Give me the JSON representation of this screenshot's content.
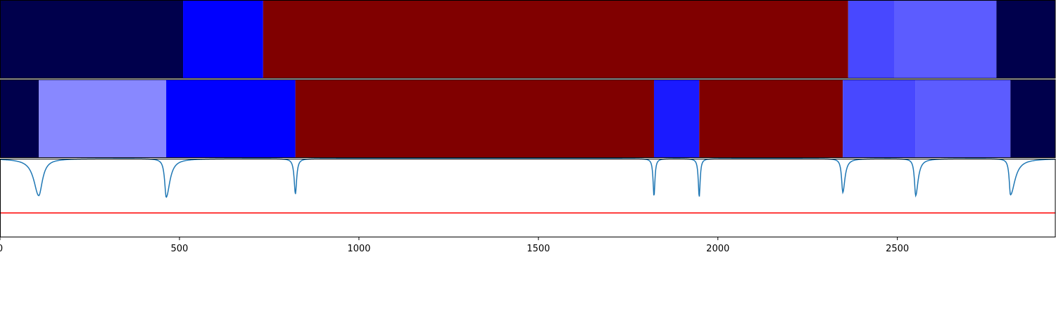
{
  "chart_data": [
    {
      "type": "heatmap",
      "name": "segment-track-1",
      "xlim": [
        0,
        2940
      ],
      "segments": [
        {
          "start": 0,
          "end": 510,
          "color": "#00004c"
        },
        {
          "start": 510,
          "end": 733,
          "color": "#0000ff"
        },
        {
          "start": 733,
          "end": 2363,
          "color": "#800000"
        },
        {
          "start": 2363,
          "end": 2492,
          "color": "#4848ff"
        },
        {
          "start": 2492,
          "end": 2776,
          "color": "#5c5cff"
        },
        {
          "start": 2776,
          "end": 2940,
          "color": "#00004c"
        }
      ]
    },
    {
      "type": "heatmap",
      "name": "segment-track-2",
      "xlim": [
        0,
        2940
      ],
      "segments": [
        {
          "start": 0,
          "end": 108,
          "color": "#00004c"
        },
        {
          "start": 108,
          "end": 463,
          "color": "#8888ff"
        },
        {
          "start": 463,
          "end": 823,
          "color": "#0000ff"
        },
        {
          "start": 823,
          "end": 1822,
          "color": "#800000"
        },
        {
          "start": 1822,
          "end": 1948,
          "color": "#1a1aff"
        },
        {
          "start": 1948,
          "end": 2348,
          "color": "#800000"
        },
        {
          "start": 2348,
          "end": 2551,
          "color": "#4848ff"
        },
        {
          "start": 2551,
          "end": 2815,
          "color": "#5c5cff"
        },
        {
          "start": 2815,
          "end": 2940,
          "color": "#00004c"
        }
      ]
    },
    {
      "type": "line",
      "xlim": [
        0,
        2940
      ],
      "ylim": [
        0,
        1
      ],
      "xticks": [
        0,
        500,
        1000,
        1500,
        2000,
        2500
      ],
      "xtick_labels": [
        "0",
        "500",
        "1000",
        "1500",
        "2000",
        "2500"
      ],
      "baseline": 1.0,
      "series": [
        {
          "color": "#1f77b4",
          "dips": [
            {
              "x": 108,
              "min": 0.53,
              "left_width": 80,
              "right_width": 60
            },
            {
              "x": 463,
              "min": 0.51,
              "left_width": 25,
              "right_width": 60
            },
            {
              "x": 823,
              "min": 0.55,
              "left_width": 20,
              "right_width": 20
            },
            {
              "x": 1822,
              "min": 0.52,
              "left_width": 15,
              "right_width": 15
            },
            {
              "x": 1948,
              "min": 0.51,
              "left_width": 15,
              "right_width": 15
            },
            {
              "x": 2348,
              "min": 0.57,
              "left_width": 20,
              "right_width": 35
            },
            {
              "x": 2551,
              "min": 0.53,
              "left_width": 20,
              "right_width": 40
            },
            {
              "x": 2815,
              "min": 0.54,
              "left_width": 20,
              "right_width": 75
            }
          ]
        },
        {
          "color": "#ff0000",
          "constant": 0.31
        }
      ]
    }
  ]
}
